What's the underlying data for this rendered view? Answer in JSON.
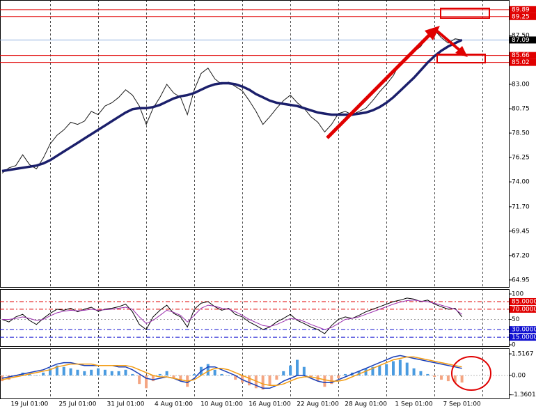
{
  "chart_data": [
    {
      "type": "line",
      "categories": [
        null,
        null,
        null,
        null,
        "19 Jul 01:00",
        null,
        null,
        null,
        null,
        null,
        null,
        "25 Jul 01:00",
        null,
        null,
        null,
        null,
        null,
        null,
        "31 Jul 01:00",
        null,
        null,
        null,
        null,
        null,
        null,
        "4 Aug 01:00",
        null,
        null,
        null,
        null,
        null,
        null,
        "10 Aug 01:00",
        null,
        null,
        null,
        null,
        null,
        null,
        "16 Aug 01:00",
        null,
        null,
        null,
        null,
        null,
        null,
        "22 Aug 01:00",
        null,
        null,
        null,
        null,
        null,
        null,
        "28 Aug 01:00",
        null,
        null,
        null,
        null,
        null,
        null,
        "1 Sep 01:00",
        null,
        null,
        null,
        null,
        null,
        null,
        "7 Sep 01:00"
      ],
      "series": [
        {
          "color": "#1a1a1a",
          "width": 1,
          "values": [
            74.8,
            75.3,
            75.5,
            76.5,
            75.6,
            75.2,
            76.2,
            77.5,
            78.3,
            78.8,
            79.5,
            79.3,
            79.6,
            80.5,
            80.2,
            81.0,
            81.3,
            81.8,
            82.5,
            82.0,
            81.0,
            79.3,
            80.8,
            81.8,
            83.0,
            82.2,
            81.8,
            80.2,
            82.5,
            84.0,
            84.5,
            83.5,
            83.0,
            83.2,
            82.8,
            82.4,
            81.5,
            80.5,
            79.3,
            80.0,
            80.8,
            81.5,
            82.0,
            81.3,
            80.8,
            80.0,
            79.5,
            78.6,
            79.3,
            80.3,
            80.5,
            80.2,
            80.5,
            80.8,
            81.5,
            82.3,
            83.0,
            83.8,
            85.0,
            85.3,
            86.0,
            86.5,
            87.5,
            88.0,
            87.3,
            86.8,
            87.2,
            87.09
          ]
        },
        {
          "color": "#1b1f6b",
          "width": 3.5,
          "values": [
            75.0,
            75.1,
            75.2,
            75.3,
            75.4,
            75.5,
            75.7,
            76.0,
            76.4,
            76.8,
            77.2,
            77.6,
            78.0,
            78.4,
            78.8,
            79.2,
            79.6,
            80.0,
            80.4,
            80.7,
            80.8,
            80.8,
            80.9,
            81.1,
            81.4,
            81.7,
            81.9,
            82.0,
            82.2,
            82.5,
            82.8,
            83.0,
            83.1,
            83.1,
            83.0,
            82.8,
            82.5,
            82.1,
            81.8,
            81.5,
            81.3,
            81.2,
            81.1,
            81.0,
            80.8,
            80.6,
            80.4,
            80.3,
            80.2,
            80.2,
            80.2,
            80.2,
            80.3,
            80.4,
            80.6,
            80.9,
            81.3,
            81.8,
            82.4,
            83.0,
            83.6,
            84.3,
            85.0,
            85.6,
            86.1,
            86.5,
            86.8,
            87.1
          ]
        }
      ],
      "ylim": [
        64.3,
        90.78
      ],
      "yticks": [
        {
          "value": 87.5,
          "label": "87.50"
        },
        {
          "value": 83,
          "label": "83.00"
        },
        80.75,
        {
          "value": 78.5,
          "label": "78.50"
        },
        76.25,
        {
          "value": 74,
          "label": "74.00"
        },
        {
          "value": 71.7,
          "label": "71.70"
        },
        69.45,
        {
          "value": 67.2,
          "label": "67.20"
        },
        64.95
      ],
      "levels": [
        {
          "value": 89.89,
          "color": "#e00000"
        },
        {
          "value": 89.25,
          "color": "#e00000"
        },
        {
          "value": 85.66,
          "color": "#e00000"
        },
        {
          "value": 85.02,
          "color": "#e00000"
        },
        {
          "value": 87.09,
          "color": "#000000"
        }
      ]
    },
    {
      "type": "line",
      "series": [
        {
          "color": "#000000",
          "width": 1,
          "values": [
            50,
            45,
            55,
            60,
            48,
            40,
            52,
            62,
            70,
            68,
            72,
            65,
            70,
            74,
            66,
            70,
            72,
            75,
            80,
            65,
            40,
            30,
            55,
            68,
            78,
            62,
            55,
            35,
            70,
            82,
            85,
            75,
            68,
            72,
            60,
            55,
            45,
            38,
            30,
            35,
            45,
            52,
            60,
            48,
            42,
            35,
            30,
            22,
            38,
            50,
            55,
            52,
            58,
            65,
            70,
            75,
            80,
            85,
            88,
            92,
            90,
            85,
            88,
            80,
            75,
            70,
            72,
            55
          ]
        },
        {
          "color": "#9b2fae",
          "width": 1,
          "values": [
            50,
            50,
            52,
            55,
            52,
            48,
            50,
            57,
            63,
            66,
            68,
            67,
            68,
            70,
            68,
            69,
            70,
            72,
            74,
            70,
            55,
            42,
            48,
            58,
            68,
            64,
            58,
            45,
            58,
            72,
            78,
            76,
            72,
            70,
            65,
            58,
            50,
            44,
            38,
            36,
            40,
            46,
            52,
            50,
            46,
            40,
            35,
            30,
            34,
            42,
            50,
            52,
            55,
            60,
            65,
            70,
            75,
            80,
            84,
            87,
            88,
            86,
            85,
            82,
            78,
            74,
            70,
            60
          ]
        }
      ],
      "ylim": [
        -2.7,
        109.6
      ],
      "yticks": [
        100,
        50,
        0
      ],
      "levels": [
        {
          "value": 85,
          "label": "85.0000",
          "color": "#e00000"
        },
        {
          "value": 70,
          "label": "70.0000",
          "color": "#e00000"
        },
        {
          "value": 30,
          "label": "30.0000",
          "color": "#1010d0"
        },
        {
          "value": 15,
          "label": "15.0000",
          "color": "#1010d0"
        }
      ]
    },
    {
      "type": "bar",
      "values": [
        -0.4,
        -0.3,
        -0.1,
        0.2,
        0.1,
        0.0,
        0.2,
        0.5,
        0.7,
        0.6,
        0.5,
        0.4,
        0.3,
        0.4,
        0.5,
        0.4,
        0.3,
        0.3,
        0.4,
        0.1,
        -0.6,
        -0.9,
        -0.4,
        0.1,
        0.3,
        -0.2,
        -0.4,
        -0.8,
        0.1,
        0.6,
        0.8,
        0.4,
        0.1,
        0.0,
        -0.3,
        -0.5,
        -0.7,
        -0.9,
        -1.0,
        -0.7,
        -0.3,
        0.3,
        0.7,
        1.1,
        0.6,
        -0.1,
        -0.4,
        -0.8,
        -0.6,
        -0.2,
        0.1,
        0.2,
        0.3,
        0.5,
        0.6,
        0.7,
        0.8,
        1.0,
        1.1,
        0.9,
        0.5,
        0.3,
        0.1,
        -0.1,
        -0.3,
        -0.4,
        -0.5,
        -0.5
      ],
      "colors": {
        "positive": "#4a9be0",
        "negative": "#f4a582"
      },
      "series": [
        {
          "color": "#1a3fb8",
          "width": 1.5,
          "values": [
            -0.2,
            -0.1,
            0.0,
            0.1,
            0.2,
            0.3,
            0.4,
            0.6,
            0.8,
            0.9,
            0.9,
            0.8,
            0.7,
            0.7,
            0.7,
            0.7,
            0.7,
            0.6,
            0.6,
            0.4,
            0.1,
            -0.2,
            -0.3,
            -0.2,
            -0.1,
            -0.2,
            -0.4,
            -0.5,
            -0.2,
            0.3,
            0.6,
            0.6,
            0.4,
            0.2,
            0.0,
            -0.3,
            -0.5,
            -0.7,
            -0.9,
            -0.9,
            -0.7,
            -0.4,
            -0.2,
            0.0,
            0.0,
            -0.2,
            -0.4,
            -0.5,
            -0.5,
            -0.3,
            -0.1,
            0.1,
            0.3,
            0.5,
            0.7,
            0.9,
            1.1,
            1.3,
            1.4,
            1.3,
            1.2,
            1.1,
            1.0,
            0.9,
            0.8,
            0.7,
            0.6,
            0.5
          ]
        },
        {
          "color": "#f39c12",
          "width": 1.5,
          "values": [
            -0.3,
            -0.2,
            -0.1,
            0.0,
            0.1,
            0.2,
            0.3,
            0.4,
            0.6,
            0.7,
            0.8,
            0.8,
            0.8,
            0.8,
            0.7,
            0.7,
            0.7,
            0.7,
            0.7,
            0.6,
            0.4,
            0.2,
            0.0,
            -0.1,
            -0.1,
            -0.2,
            -0.3,
            -0.4,
            -0.3,
            0.0,
            0.3,
            0.5,
            0.5,
            0.4,
            0.2,
            0.0,
            -0.2,
            -0.4,
            -0.6,
            -0.7,
            -0.7,
            -0.6,
            -0.4,
            -0.2,
            -0.1,
            -0.1,
            -0.2,
            -0.3,
            -0.4,
            -0.4,
            -0.3,
            -0.1,
            0.1,
            0.3,
            0.5,
            0.7,
            0.9,
            1.1,
            1.2,
            1.3,
            1.3,
            1.2,
            1.1,
            1.0,
            0.9,
            0.8,
            0.7,
            0.6
          ]
        }
      ],
      "ylim": [
        -1.62,
        1.91
      ],
      "yticks": [
        1.5167,
        {
          "value": 0,
          "label": "0.00"
        },
        -1.3601
      ]
    }
  ]
}
